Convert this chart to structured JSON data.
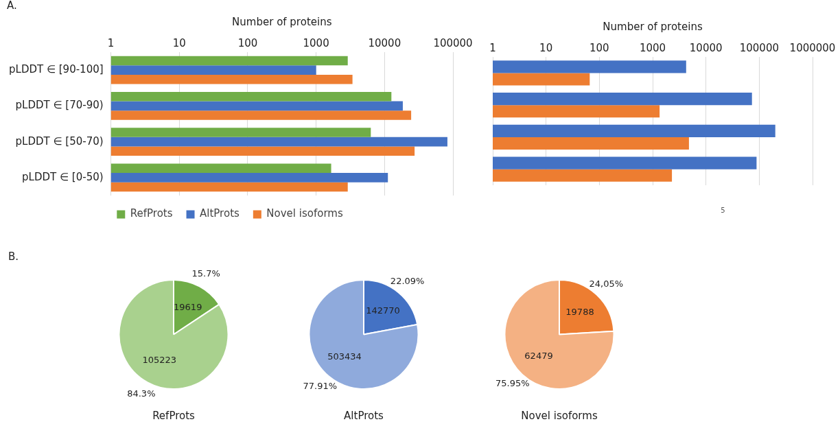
{
  "chart_data": [
    {
      "type": "bar",
      "orientation": "horizontal",
      "title": "A.",
      "xlabel": "Number of proteins",
      "categories": [
        "pLDDT ∈ [90-100]",
        "pLDDT ∈ [70-90)",
        "pLDDT ∈ [50-70)",
        "pLDDT ∈ [0-50)"
      ],
      "series": [
        {
          "name": "RefProts",
          "color": "#70ad47",
          "values": [
            2900,
            12600,
            6300,
            1660
          ]
        },
        {
          "name": "AltProts",
          "color": "#4472c4",
          "values": [
            1000,
            18500,
            83000,
            11200
          ]
        },
        {
          "name": "Novel isoforms",
          "color": "#ed7d31",
          "values": [
            3400,
            24500,
            27500,
            2900
          ]
        }
      ],
      "log": "x",
      "xlim": [
        1,
        100000
      ],
      "xticks": [
        1,
        10,
        100,
        1000,
        10000,
        100000
      ],
      "grid": "x",
      "legend": "bottom"
    },
    {
      "type": "bar",
      "orientation": "horizontal",
      "xlabel": "Number of proteins",
      "categories": [
        null,
        null,
        null,
        null
      ],
      "series": [
        {
          "color": "#4472c4",
          "values": [
            4250,
            73000,
            200000,
            89000
          ]
        },
        {
          "color": "#ed7d31",
          "values": [
            66,
            1350,
            4800,
            2300
          ]
        }
      ],
      "log": "x",
      "xlim": [
        1,
        1000000
      ],
      "xticks": [
        1,
        10,
        100,
        1000,
        10000,
        100000,
        1000000
      ],
      "grid": "x",
      "tick_labels": "x",
      "annotations": [
        "5"
      ]
    },
    {
      "type": "pie",
      "title": "RefProts",
      "categories": [
        null,
        null
      ],
      "values": [
        19619,
        105223
      ],
      "colors": [
        "#70ad47",
        "#a9d18e"
      ],
      "data_labels": true,
      "annotations": [
        "15.7%",
        "84.3%",
        "B."
      ]
    },
    {
      "type": "pie",
      "title": "AltProts",
      "categories": [
        null,
        null
      ],
      "values": [
        142770,
        503434
      ],
      "colors": [
        "#4472c4",
        "#8faadc"
      ],
      "data_labels": true,
      "annotations": [
        "22.09%",
        "77.91%"
      ]
    },
    {
      "type": "pie",
      "title": "Novel isoforms",
      "categories": [
        null,
        null
      ],
      "values": [
        19788,
        62479
      ],
      "colors": [
        "#ed7d31",
        "#f4b183"
      ],
      "data_labels": true,
      "annotations": [
        "24,05%",
        "75.95%"
      ]
    }
  ]
}
